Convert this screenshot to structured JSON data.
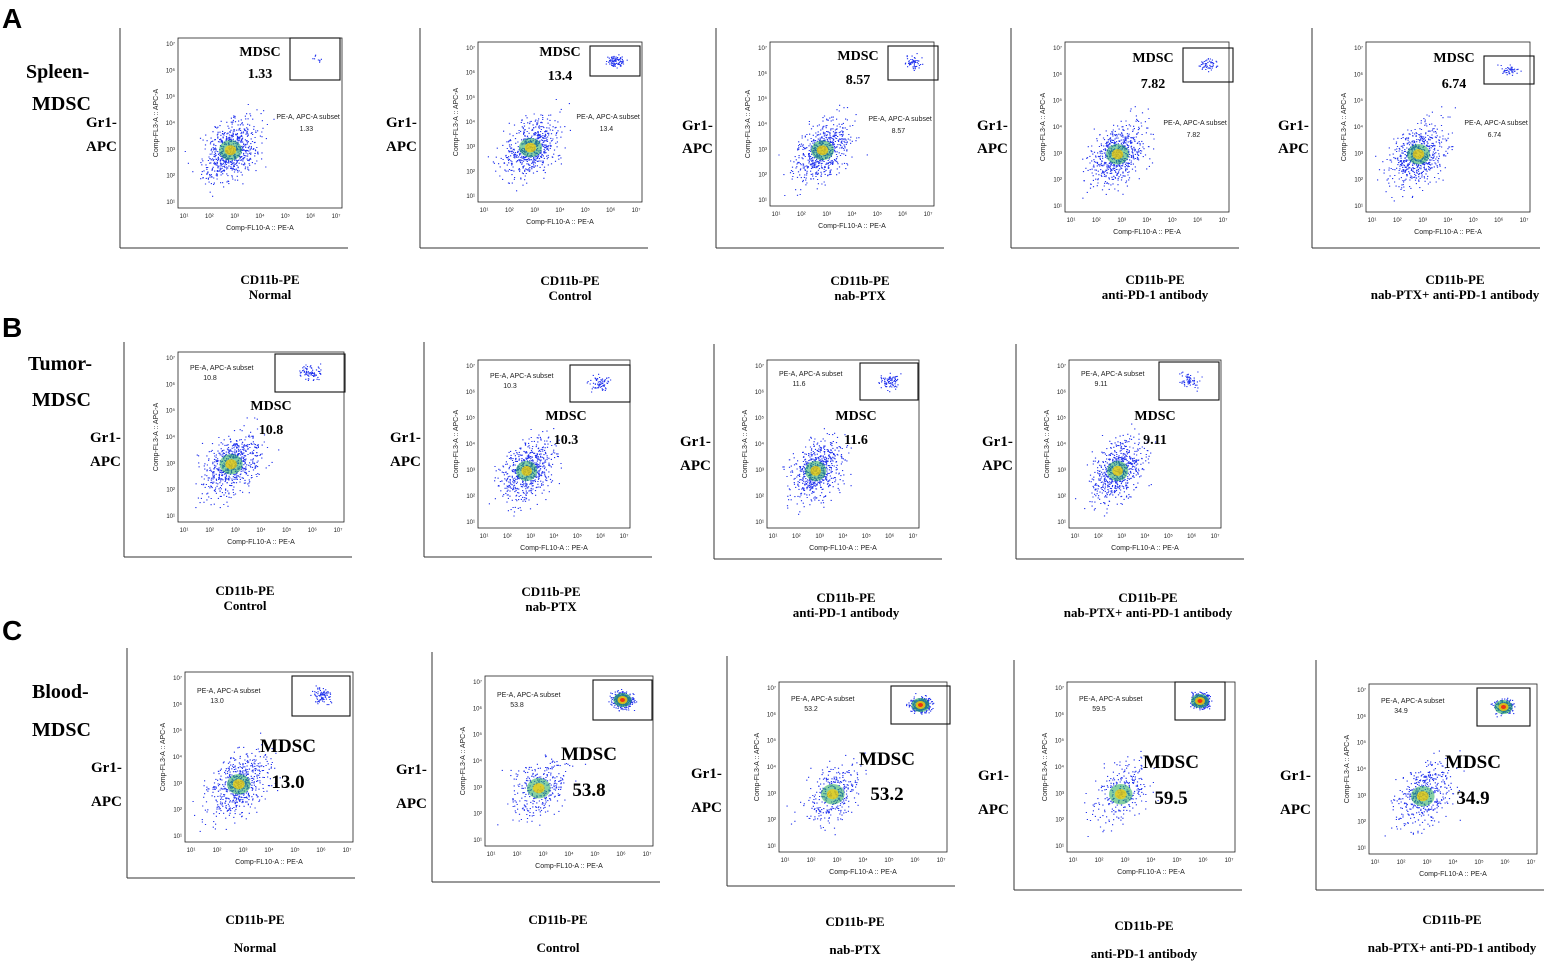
{
  "panels": [
    {
      "letter": "A",
      "row_label": [
        "Spleen-",
        "MDSC"
      ]
    },
    {
      "letter": "B",
      "row_label": [
        "Tumor-",
        "MDSC"
      ]
    },
    {
      "letter": "C",
      "row_label": [
        "Blood-",
        "MDSC"
      ]
    }
  ],
  "common": {
    "gate_name": "MDSC",
    "y_axis_label": [
      "Gr1-",
      "APC"
    ],
    "x_axis_label": "CD11b-PE",
    "internal_x_label": "Comp-FL10-A :: PE-A",
    "internal_y_label": "Comp-FL3-A :: APC-A",
    "subset_label": "PE-A, APC-A subset",
    "tick_labels": [
      "10¹",
      "10²",
      "10³",
      "10⁴",
      "10⁵",
      "10⁶",
      "10⁷"
    ]
  },
  "colors": {
    "dots": "#2233ee",
    "dense_mid": "#22aa55",
    "dense_high": "#ffcc00",
    "dense_peak": "#ee3311"
  },
  "chart_data": [
    {
      "type": "scatter",
      "panel": "A",
      "group": "Normal",
      "mdsc_percent": "1.33",
      "subset_percent": "1.33"
    },
    {
      "type": "scatter",
      "panel": "A",
      "group": "Control",
      "mdsc_percent": "13.4",
      "subset_percent": "13.4"
    },
    {
      "type": "scatter",
      "panel": "A",
      "group": "nab-PTX",
      "mdsc_percent": "8.57",
      "subset_percent": "8.57"
    },
    {
      "type": "scatter",
      "panel": "A",
      "group": "anti-PD-1 antibody",
      "mdsc_percent": "7.82",
      "subset_percent": "7.82"
    },
    {
      "type": "scatter",
      "panel": "A",
      "group": "nab-PTX+ anti-PD-1 antibody",
      "mdsc_percent": "6.74",
      "subset_percent": "6.74"
    },
    {
      "type": "scatter",
      "panel": "B",
      "group": "Control",
      "mdsc_percent": "10.8",
      "subset_percent": "10.8"
    },
    {
      "type": "scatter",
      "panel": "B",
      "group": "nab-PTX",
      "mdsc_percent": "10.3",
      "subset_percent": "10.3"
    },
    {
      "type": "scatter",
      "panel": "B",
      "group": "anti-PD-1 antibody",
      "mdsc_percent": "11.6",
      "subset_percent": "11.6"
    },
    {
      "type": "scatter",
      "panel": "B",
      "group": "nab-PTX+ anti-PD-1 antibody",
      "mdsc_percent": "9.11",
      "subset_percent": "9.11"
    },
    {
      "type": "scatter",
      "panel": "C",
      "group": "Normal",
      "mdsc_percent": "13.0",
      "subset_percent": "13.0"
    },
    {
      "type": "scatter",
      "panel": "C",
      "group": "Control",
      "mdsc_percent": "53.8",
      "subset_percent": "53.8"
    },
    {
      "type": "scatter",
      "panel": "C",
      "group": "nab-PTX",
      "mdsc_percent": "53.2",
      "subset_percent": "53.2"
    },
    {
      "type": "scatter",
      "panel": "C",
      "group": "anti-PD-1 antibody",
      "mdsc_percent": "59.5",
      "subset_percent": "59.5"
    },
    {
      "type": "scatter",
      "panel": "C",
      "group": "nab-PTX+ anti-PD-1 antibody",
      "mdsc_percent": "34.9",
      "subset_percent": "34.9"
    }
  ]
}
